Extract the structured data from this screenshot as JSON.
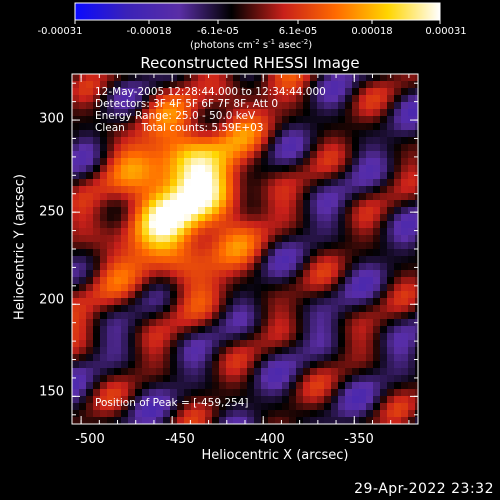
{
  "colorbar": {
    "ticks": [
      "-0.00031",
      "-0.00018",
      "-6.1e-05",
      "6.1e-05",
      "0.00018",
      "0.00031"
    ],
    "unit_prefix": "(photons cm",
    "unit_exp1": "-2",
    "unit_mid1": " s",
    "unit_exp2": "-1",
    "unit_mid2": " asec",
    "unit_exp3": "-2",
    "unit_suffix": ")"
  },
  "info": {
    "line1": "12-May-2005 12:28:44.000 to 12:34:44.000",
    "line2": "Detectors: 3F 4F 5F 6F 7F 8F, Att 0",
    "line3": "Energy Range: 25.0 - 50.0 keV",
    "line4": "Clean     Total counts: 5.59E+03",
    "peak": "Position of Peak = [-459,254]"
  },
  "footer": {
    "timestamp": "29-Apr-2022 23:32"
  },
  "chart_data": {
    "type": "heatmap",
    "title": "Reconstructed RHESSI Image",
    "xlabel": "Heliocentric X (arcsec)",
    "ylabel": "Heliocentric Y (arcsec)",
    "xlim": [
      -505,
      -315
    ],
    "ylim": [
      135,
      325
    ],
    "x_ticks": [
      -500,
      -450,
      -400,
      -350
    ],
    "y_ticks": [
      150,
      200,
      250,
      300
    ],
    "colorscale": {
      "min": -0.00031,
      "max": 0.00031,
      "stops": [
        "#0a0aff",
        "#3b22b8",
        "#5a2ea6",
        "#000000",
        "#c8201a",
        "#ff6a00",
        "#ffd500",
        "#ffffff"
      ]
    },
    "peak": {
      "x": -459,
      "y": 254
    }
  }
}
